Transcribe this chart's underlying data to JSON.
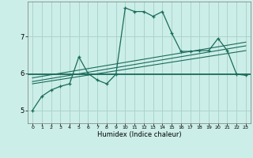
{
  "title": "",
  "xlabel": "Humidex (Indice chaleur)",
  "background_color": "#cceee8",
  "grid_color": "#aad4cc",
  "line_color": "#1a6b5a",
  "x_ticks": [
    0,
    1,
    2,
    3,
    4,
    5,
    6,
    7,
    8,
    9,
    10,
    11,
    12,
    13,
    14,
    15,
    16,
    17,
    18,
    19,
    20,
    21,
    22,
    23
  ],
  "y_ticks": [
    5,
    6,
    7
  ],
  "xlim": [
    -0.5,
    23.5
  ],
  "ylim": [
    4.65,
    7.95
  ],
  "main_x": [
    0,
    1,
    2,
    3,
    4,
    5,
    6,
    7,
    8,
    9,
    10,
    11,
    12,
    13,
    14,
    15,
    16,
    17,
    18,
    19,
    20,
    21,
    22,
    23
  ],
  "main_y": [
    5.0,
    5.38,
    5.55,
    5.65,
    5.72,
    6.45,
    6.0,
    5.82,
    5.72,
    5.98,
    7.78,
    7.68,
    7.68,
    7.55,
    7.68,
    7.1,
    6.6,
    6.6,
    6.62,
    6.62,
    6.95,
    6.62,
    5.98,
    5.95
  ],
  "line1_x": [
    0,
    23
  ],
  "line1_y": [
    5.72,
    6.62
  ],
  "line2_x": [
    0,
    23
  ],
  "line2_y": [
    5.78,
    6.75
  ],
  "line3_x": [
    0,
    23
  ],
  "line3_y": [
    5.88,
    6.85
  ],
  "hline_y": 5.97
}
